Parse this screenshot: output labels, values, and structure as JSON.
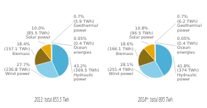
{
  "chart_data": [
    {
      "type": "pie",
      "title": "2013: total 855.5 Twh",
      "categories": [
        "Hydraulic\npower",
        "Wind power",
        "Biomass",
        "Solar power",
        "Geothermal\npower",
        "Ocean\nenergies"
      ],
      "values": [
        43.2,
        27.7,
        18.4,
        10.0,
        0.7,
        0.05
      ],
      "value_labels": [
        "43.2%",
        "27.7%",
        "18.4%",
        "10.0%",
        "0.7%",
        "0.05%"
      ],
      "twh_labels": [
        "(369.5 TWh)",
        "(236.8 TWh)",
        "(157.1 TWh)",
        "(85.5 TWh)",
        "(5.9 TWh)",
        "(0.4 TWh)"
      ],
      "colors": [
        "#4bafd6",
        "#87ceeb",
        "#8b6d14",
        "#e8a800",
        "#c8b86a",
        "#c8b86a"
      ],
      "data_labels": true
    },
    {
      "type": "pie",
      "title": "2014*: total 895 Twh",
      "categories": [
        "Hydraulic\npower",
        "Wind power",
        "Biomass",
        "Solar power",
        "Geothermal\npower",
        "Ocean\nenergies"
      ],
      "values": [
        41.8,
        28.1,
        18.6,
        10.8,
        0.7,
        0.05
      ],
      "value_labels": [
        "41.8%",
        "28.1%",
        "18.6%",
        "10.8%",
        "0.7%",
        "0.05%"
      ],
      "twh_labels": [
        "(374 TWh)",
        "(251.4 TWh)",
        "(166.1 TWh)",
        "(96.5 TWh)",
        "(6.2 TWh)",
        "(0.4 TWh)"
      ],
      "colors": [
        "#4bafd6",
        "#87ceeb",
        "#8b6d14",
        "#e8a800",
        "#c8b86a",
        "#c8b86a"
      ],
      "data_labels": true
    }
  ]
}
